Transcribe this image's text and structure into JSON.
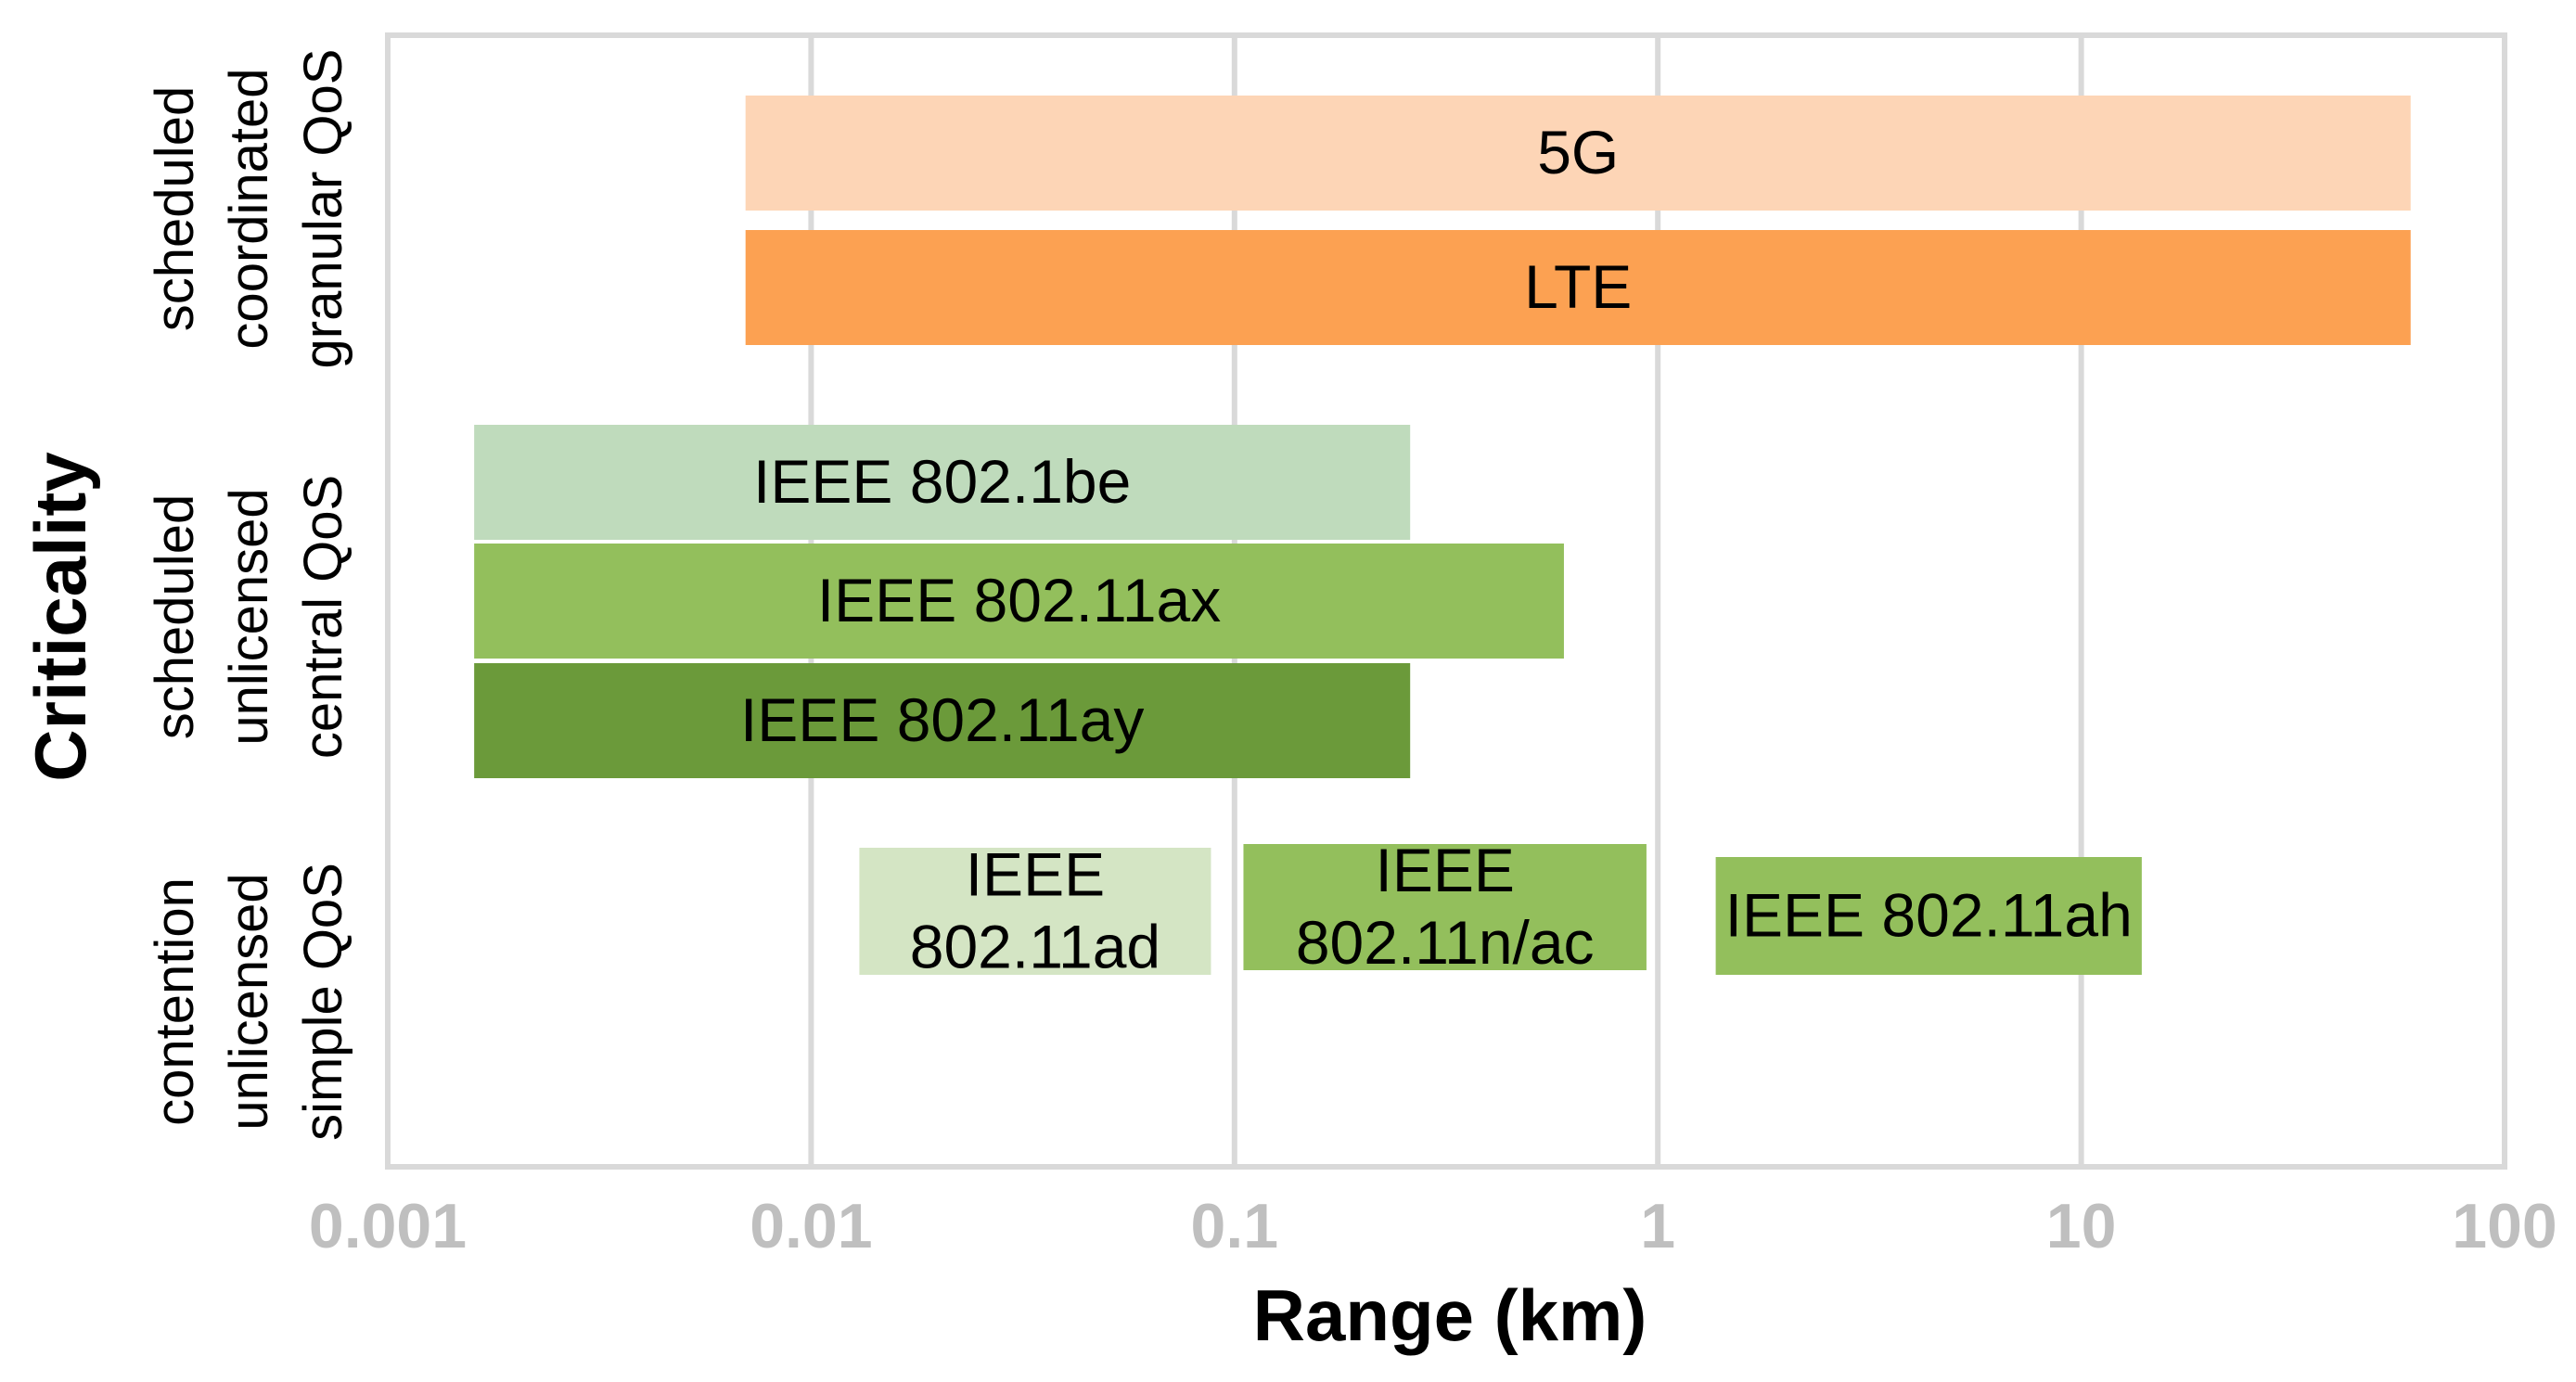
{
  "chart_data": {
    "type": "bar",
    "orientation": "horizontal-range",
    "xlabel": "Range (km)",
    "ylabel": "Criticality",
    "xscale": "log",
    "xlim": [
      0.001,
      100
    ],
    "x_ticks": [
      0.001,
      0.01,
      0.1,
      1,
      10,
      100
    ],
    "x_tick_labels": [
      "0.001",
      "0.01",
      "0.1",
      "1",
      "10",
      "100"
    ],
    "grid": true,
    "criticality_groups": [
      {
        "id": "high",
        "lines": [
          "scheduled",
          "coordinated",
          "granular QoS"
        ]
      },
      {
        "id": "mid",
        "lines": [
          "scheduled",
          "unlicensed",
          "central QoS"
        ]
      },
      {
        "id": "low",
        "lines": [
          "contention",
          "unlicensed",
          "simple QoS"
        ]
      }
    ],
    "bars": [
      {
        "label_lines": [
          "5G"
        ],
        "group": "high",
        "x_start": 0.007,
        "x_end": 60,
        "color": "#fdd5b6"
      },
      {
        "label_lines": [
          "LTE"
        ],
        "group": "high",
        "x_start": 0.007,
        "x_end": 60,
        "color": "#fca152"
      },
      {
        "label_lines": [
          "IEEE 802.1be"
        ],
        "group": "mid",
        "x_start": 0.0016,
        "x_end": 0.26,
        "color": "#bfdbbc"
      },
      {
        "label_lines": [
          "IEEE 802.11ax"
        ],
        "group": "mid",
        "x_start": 0.0016,
        "x_end": 0.6,
        "color": "#93bf5c"
      },
      {
        "label_lines": [
          "IEEE 802.11ay"
        ],
        "group": "mid",
        "x_start": 0.0016,
        "x_end": 0.26,
        "color": "#6b9a3a"
      },
      {
        "label_lines": [
          "IEEE",
          "802.11ad"
        ],
        "group": "low",
        "x_start": 0.013,
        "x_end": 0.088,
        "color": "#d4e5c4"
      },
      {
        "label_lines": [
          "IEEE",
          "802.11n/ac"
        ],
        "group": "low",
        "x_start": 0.105,
        "x_end": 0.94,
        "color": "#93bf5c"
      },
      {
        "label_lines": [
          "IEEE 802.11ah"
        ],
        "group": "low",
        "x_start": 1.37,
        "x_end": 13.9,
        "color": "#93bf5c"
      }
    ]
  }
}
